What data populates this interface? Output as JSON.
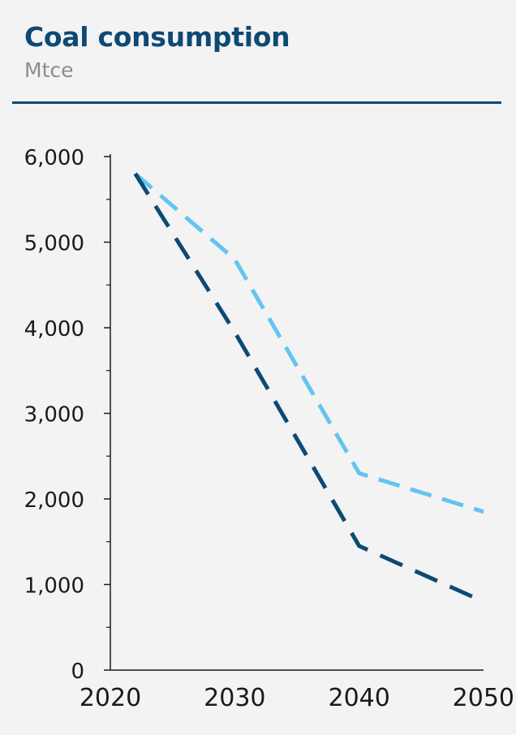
{
  "header": {
    "title": "Coal consumption",
    "unit": "Mtce"
  },
  "chart_data": {
    "type": "line",
    "title": "Coal consumption",
    "ylabel": "Mtce",
    "xlabel": "",
    "x": [
      2022,
      2030,
      2040,
      2050
    ],
    "xticks": [
      "2020",
      "2030",
      "2040",
      "2050"
    ],
    "xlim": [
      2020,
      2050
    ],
    "ylim": [
      0,
      6000
    ],
    "yticks": [
      "0",
      "1,000",
      "2,000",
      "3,000",
      "4,000",
      "5,000",
      "6,000"
    ],
    "grid": false,
    "series": [
      {
        "color": "#64c4f2",
        "dash": "dashed",
        "values": [
          5800,
          4800,
          2300,
          1850
        ]
      },
      {
        "color": "#0d4a73",
        "dash": "long-dashed",
        "values": [
          5800,
          3950,
          1450,
          800
        ]
      }
    ]
  }
}
